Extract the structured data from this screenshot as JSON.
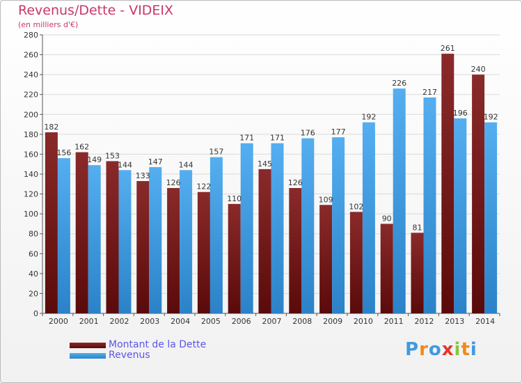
{
  "title": "Revenus/Dette - VIDEIX",
  "subtitle": "(en milliers d'€)",
  "colors": {
    "title": "#c8366c",
    "dette": "#7a1c1c",
    "revenus": "#3f9ae0",
    "legend_text": "#5a56e6"
  },
  "chart_data": {
    "type": "bar",
    "categories": [
      "2000",
      "2001",
      "2002",
      "2003",
      "2004",
      "2005",
      "2006",
      "2007",
      "2008",
      "2009",
      "2010",
      "2011",
      "2012",
      "2013",
      "2014"
    ],
    "series": [
      {
        "name": "Montant de la Dette",
        "values": [
          182,
          162,
          153,
          133,
          126,
          122,
          110,
          145,
          126,
          109,
          102,
          90,
          81,
          261,
          240
        ],
        "color": "#7a1c1c"
      },
      {
        "name": "Revenus",
        "values": [
          156,
          149,
          144,
          147,
          144,
          157,
          171,
          171,
          176,
          177,
          192,
          226,
          217,
          196,
          192
        ],
        "color": "#3f9ae0"
      }
    ],
    "ylim": [
      0,
      280
    ],
    "yticks": [
      0,
      20,
      40,
      60,
      80,
      100,
      120,
      140,
      160,
      180,
      200,
      220,
      240,
      260,
      280
    ],
    "grid": true,
    "data_labels": true,
    "legend_position": "bottom-left"
  },
  "legend": [
    {
      "label": "Montant de la Dette"
    },
    {
      "label": "Revenus"
    }
  ],
  "logo": {
    "letters": [
      "P",
      "r",
      "o",
      "x",
      "i",
      "t",
      "i"
    ],
    "colors": [
      "#3f9ae0",
      "#f08a1c",
      "#3f9ae0",
      "#e8352a",
      "#8bc53f",
      "#f08a1c",
      "#3f9ae0"
    ]
  }
}
